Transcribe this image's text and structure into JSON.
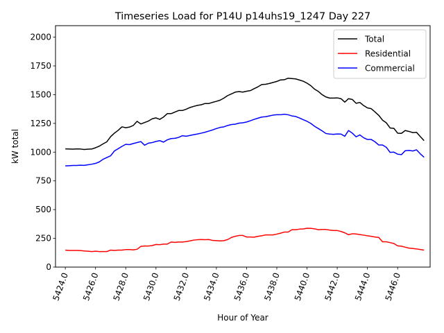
{
  "chart_data": {
    "type": "line",
    "title": "Timeseries Load for P14U p14uhs19_1247  Day 227",
    "xlabel": "Hour of Year",
    "ylabel": "kW total",
    "xlim": [
      5423.35,
      5448.15
    ],
    "ylim": [
      0,
      2100
    ],
    "x_ticks": [
      5424,
      5426,
      5428,
      5430,
      5432,
      5434,
      5436,
      5438,
      5440,
      5442,
      5444,
      5446
    ],
    "x_tick_labels": [
      "5424.0",
      "5426.0",
      "5428.0",
      "5430.0",
      "5432.0",
      "5434.0",
      "5436.0",
      "5438.0",
      "5440.0",
      "5442.0",
      "5444.0",
      "5446.0"
    ],
    "y_ticks": [
      0,
      250,
      500,
      750,
      1000,
      1250,
      1500,
      1750,
      2000
    ],
    "y_tick_labels": [
      "0",
      "250",
      "500",
      "750",
      "1000",
      "1250",
      "1500",
      "1750",
      "2000"
    ],
    "legend_position": "top-right",
    "x": [
      5424.0,
      5424.25,
      5424.5,
      5424.75,
      5425.0,
      5425.25,
      5425.5,
      5425.75,
      5426.0,
      5426.25,
      5426.5,
      5426.75,
      5427.0,
      5427.25,
      5427.5,
      5427.75,
      5428.0,
      5428.25,
      5428.5,
      5428.75,
      5429.0,
      5429.25,
      5429.5,
      5429.75,
      5430.0,
      5430.25,
      5430.5,
      5430.75,
      5431.0,
      5431.25,
      5431.5,
      5431.75,
      5432.0,
      5432.25,
      5432.5,
      5432.75,
      5433.0,
      5433.25,
      5433.5,
      5433.75,
      5434.0,
      5434.25,
      5434.5,
      5434.75,
      5435.0,
      5435.25,
      5435.5,
      5435.75,
      5436.0,
      5436.25,
      5436.5,
      5436.75,
      5437.0,
      5437.25,
      5437.5,
      5437.75,
      5438.0,
      5438.25,
      5438.5,
      5438.75,
      5439.0,
      5439.25,
      5439.5,
      5439.75,
      5440.0,
      5440.25,
      5440.5,
      5440.75,
      5441.0,
      5441.25,
      5441.5,
      5441.75,
      5442.0,
      5442.25,
      5442.5,
      5442.75,
      5443.0,
      5443.25,
      5443.5,
      5443.75,
      5444.0,
      5444.25,
      5444.5,
      5444.75,
      5445.0,
      5445.25,
      5445.5,
      5445.75,
      5446.0,
      5446.25,
      5446.5,
      5446.75,
      5447.0,
      5447.25,
      5447.5,
      5447.75
    ],
    "series": [
      {
        "name": "Total",
        "color": "#000000",
        "values": [
          1028,
          1027,
          1026,
          1028,
          1027,
          1023,
          1026,
          1027,
          1038,
          1052,
          1072,
          1090,
          1135,
          1165,
          1190,
          1220,
          1212,
          1218,
          1232,
          1268,
          1245,
          1258,
          1270,
          1290,
          1298,
          1285,
          1305,
          1335,
          1335,
          1348,
          1362,
          1362,
          1373,
          1388,
          1398,
          1407,
          1412,
          1423,
          1423,
          1433,
          1442,
          1452,
          1470,
          1492,
          1507,
          1522,
          1527,
          1522,
          1530,
          1535,
          1552,
          1568,
          1588,
          1590,
          1597,
          1606,
          1615,
          1628,
          1630,
          1643,
          1640,
          1637,
          1627,
          1617,
          1600,
          1578,
          1548,
          1528,
          1500,
          1480,
          1470,
          1470,
          1472,
          1465,
          1435,
          1465,
          1458,
          1425,
          1432,
          1405,
          1385,
          1378,
          1350,
          1320,
          1278,
          1255,
          1210,
          1207,
          1165,
          1163,
          1188,
          1180,
          1170,
          1172,
          1135,
          1100
        ]
      },
      {
        "name": "Residential",
        "color": "#ff0000",
        "values": [
          148,
          145,
          145,
          145,
          144,
          140,
          138,
          135,
          138,
          135,
          135,
          135,
          148,
          145,
          148,
          148,
          152,
          152,
          150,
          155,
          180,
          183,
          183,
          187,
          197,
          195,
          200,
          200,
          218,
          215,
          218,
          218,
          222,
          228,
          235,
          238,
          240,
          238,
          240,
          232,
          230,
          228,
          230,
          240,
          258,
          268,
          275,
          275,
          262,
          262,
          260,
          268,
          272,
          280,
          280,
          280,
          287,
          295,
          305,
          305,
          325,
          325,
          330,
          332,
          338,
          337,
          333,
          325,
          327,
          327,
          322,
          318,
          318,
          310,
          298,
          282,
          290,
          288,
          283,
          278,
          272,
          268,
          262,
          258,
          220,
          220,
          213,
          205,
          185,
          182,
          173,
          165,
          162,
          158,
          153,
          148
        ]
      },
      {
        "name": "Commercial",
        "color": "#0000ff",
        "values": [
          880,
          882,
          884,
          884,
          886,
          885,
          890,
          895,
          902,
          915,
          938,
          953,
          968,
          1010,
          1030,
          1050,
          1068,
          1065,
          1075,
          1083,
          1092,
          1060,
          1078,
          1083,
          1093,
          1100,
          1087,
          1107,
          1118,
          1120,
          1128,
          1143,
          1138,
          1145,
          1152,
          1158,
          1165,
          1173,
          1183,
          1193,
          1205,
          1215,
          1220,
          1232,
          1240,
          1243,
          1252,
          1255,
          1262,
          1273,
          1285,
          1295,
          1305,
          1308,
          1315,
          1322,
          1325,
          1325,
          1330,
          1325,
          1315,
          1310,
          1297,
          1282,
          1268,
          1250,
          1225,
          1205,
          1185,
          1162,
          1157,
          1155,
          1158,
          1157,
          1138,
          1188,
          1165,
          1133,
          1150,
          1125,
          1110,
          1110,
          1090,
          1062,
          1062,
          1042,
          998,
          1000,
          982,
          978,
          1012,
          1015,
          1010,
          1020,
          985,
          955
        ]
      }
    ]
  }
}
